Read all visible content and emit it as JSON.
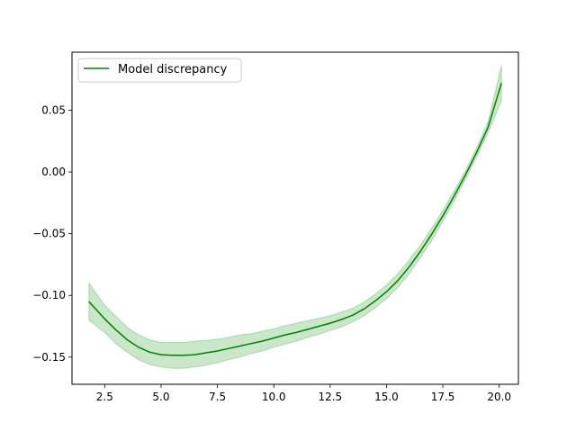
{
  "chart_data": {
    "type": "line",
    "title": "",
    "xlabel": "",
    "ylabel": "",
    "xlim": [
      1.05,
      20.85
    ],
    "ylim": [
      -0.172,
      0.097
    ],
    "grid": false,
    "legend_position": "top-left",
    "x_ticks": [
      2.5,
      5.0,
      7.5,
      10.0,
      12.5,
      15.0,
      17.5,
      20.0
    ],
    "x_tick_labels": [
      "2.5",
      "5.0",
      "7.5",
      "10.0",
      "12.5",
      "15.0",
      "17.5",
      "20.0"
    ],
    "y_ticks": [
      -0.15,
      -0.1,
      -0.05,
      0.0,
      0.05
    ],
    "y_tick_labels": [
      "−0.15",
      "−0.10",
      "−0.05",
      "0.00",
      "0.05"
    ],
    "series": [
      {
        "name": "Model discrepancy",
        "color": "#008000",
        "band_color": "#2ca02c",
        "x": [
          1.8,
          2.5,
          3.0,
          3.5,
          4.0,
          4.5,
          5.0,
          5.5,
          6.0,
          6.5,
          7.0,
          7.5,
          8.0,
          8.5,
          9.0,
          9.5,
          10.0,
          10.5,
          11.0,
          11.5,
          12.0,
          12.5,
          13.0,
          13.5,
          14.0,
          14.5,
          15.0,
          15.5,
          16.0,
          16.5,
          17.0,
          17.5,
          18.0,
          18.5,
          19.0,
          19.5,
          20.1
        ],
        "y": [
          -0.105,
          -0.119,
          -0.128,
          -0.136,
          -0.142,
          -0.146,
          -0.148,
          -0.1485,
          -0.1485,
          -0.148,
          -0.1465,
          -0.145,
          -0.143,
          -0.141,
          -0.139,
          -0.137,
          -0.1345,
          -0.132,
          -0.13,
          -0.1275,
          -0.125,
          -0.1225,
          -0.1195,
          -0.116,
          -0.111,
          -0.1045,
          -0.097,
          -0.088,
          -0.077,
          -0.0645,
          -0.0505,
          -0.0355,
          -0.0195,
          -0.0025,
          0.016,
          0.036,
          0.072
        ],
        "lower": [
          -0.12,
          -0.13,
          -0.139,
          -0.146,
          -0.152,
          -0.156,
          -0.158,
          -0.159,
          -0.159,
          -0.158,
          -0.1565,
          -0.1545,
          -0.152,
          -0.15,
          -0.147,
          -0.145,
          -0.142,
          -0.1395,
          -0.137,
          -0.134,
          -0.1315,
          -0.1285,
          -0.1255,
          -0.1215,
          -0.1165,
          -0.11,
          -0.1025,
          -0.0935,
          -0.0825,
          -0.0695,
          -0.0555,
          -0.04,
          -0.0235,
          -0.006,
          0.0125,
          0.0315,
          0.058
        ],
        "upper": [
          -0.09,
          -0.108,
          -0.117,
          -0.126,
          -0.132,
          -0.136,
          -0.138,
          -0.138,
          -0.138,
          -0.137,
          -0.1365,
          -0.1355,
          -0.134,
          -0.132,
          -0.131,
          -0.129,
          -0.127,
          -0.1245,
          -0.1225,
          -0.1205,
          -0.1185,
          -0.1165,
          -0.1135,
          -0.1105,
          -0.1055,
          -0.099,
          -0.0915,
          -0.0825,
          -0.0715,
          -0.0595,
          -0.0455,
          -0.031,
          -0.0155,
          0.001,
          0.0195,
          0.0405,
          0.086
        ]
      }
    ]
  }
}
